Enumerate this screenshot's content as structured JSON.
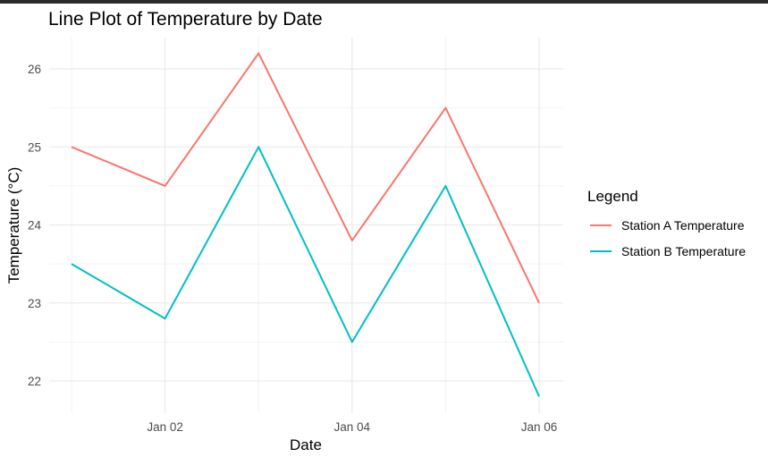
{
  "chart_data": {
    "type": "line",
    "title": "Line Plot of Temperature by Date",
    "xlabel": "Date",
    "ylabel": "Temperature (°C)",
    "x": [
      "Jan 01",
      "Jan 02",
      "Jan 03",
      "Jan 04",
      "Jan 05",
      "Jan 06"
    ],
    "x_tick_labels": [
      "Jan 02",
      "Jan 04",
      "Jan 06"
    ],
    "y_ticks": [
      22,
      23,
      24,
      25,
      26
    ],
    "y_tick_labels": [
      "22",
      "23",
      "24",
      "25",
      "26"
    ],
    "ylim": [
      21.6,
      26.4
    ],
    "grid": true,
    "legend": {
      "title": "Legend",
      "position": "right"
    },
    "series": [
      {
        "name": "Station A Temperature",
        "color": "#F8766D",
        "values": [
          25.0,
          24.5,
          26.2,
          23.8,
          25.5,
          23.0
        ]
      },
      {
        "name": "Station B Temperature",
        "color": "#00BFC4",
        "values": [
          23.5,
          22.8,
          25.0,
          22.5,
          24.5,
          21.8
        ]
      }
    ]
  }
}
